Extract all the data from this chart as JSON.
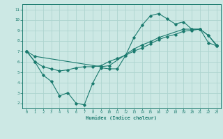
{
  "xlabel": "Humidex (Indice chaleur)",
  "bg_color": "#cce8e4",
  "line_color": "#1a7a6e",
  "grid_color": "#add4cf",
  "xlim": [
    -0.5,
    23.5
  ],
  "ylim": [
    1.5,
    11.5
  ],
  "xticks": [
    0,
    1,
    2,
    3,
    4,
    5,
    6,
    7,
    8,
    9,
    10,
    11,
    12,
    13,
    14,
    15,
    16,
    17,
    18,
    19,
    20,
    21,
    22,
    23
  ],
  "yticks": [
    2,
    3,
    4,
    5,
    6,
    7,
    8,
    9,
    10,
    11
  ],
  "line1_x": [
    0,
    1,
    2,
    3,
    4,
    5,
    6,
    7,
    8,
    9,
    10,
    11,
    12,
    13,
    14,
    15,
    16,
    17,
    18,
    19,
    20,
    21,
    22,
    23
  ],
  "line1_y": [
    7.0,
    6.0,
    4.7,
    4.1,
    2.7,
    3.0,
    2.0,
    1.85,
    3.9,
    5.4,
    5.3,
    5.3,
    6.6,
    8.3,
    9.5,
    10.4,
    10.6,
    10.1,
    9.6,
    9.8,
    9.1,
    9.1,
    8.5,
    7.6
  ],
  "line2_x": [
    0,
    1,
    2,
    3,
    4,
    5,
    6,
    7,
    8,
    9,
    10,
    11,
    12,
    13,
    14,
    15,
    16,
    17,
    18,
    19,
    20,
    21,
    22,
    23
  ],
  "line2_y": [
    7.0,
    6.0,
    5.5,
    5.3,
    5.1,
    5.2,
    5.4,
    5.5,
    5.5,
    5.6,
    6.0,
    6.3,
    6.6,
    7.0,
    7.3,
    7.7,
    8.1,
    8.4,
    8.6,
    8.9,
    9.0,
    9.1,
    7.8,
    7.5
  ],
  "line3_x": [
    0,
    1,
    9,
    10,
    13,
    14,
    15,
    16,
    19,
    20,
    21,
    22,
    23
  ],
  "line3_y": [
    7.0,
    6.5,
    5.5,
    5.6,
    7.2,
    7.6,
    7.9,
    8.3,
    9.1,
    9.1,
    9.1,
    8.5,
    7.5
  ]
}
